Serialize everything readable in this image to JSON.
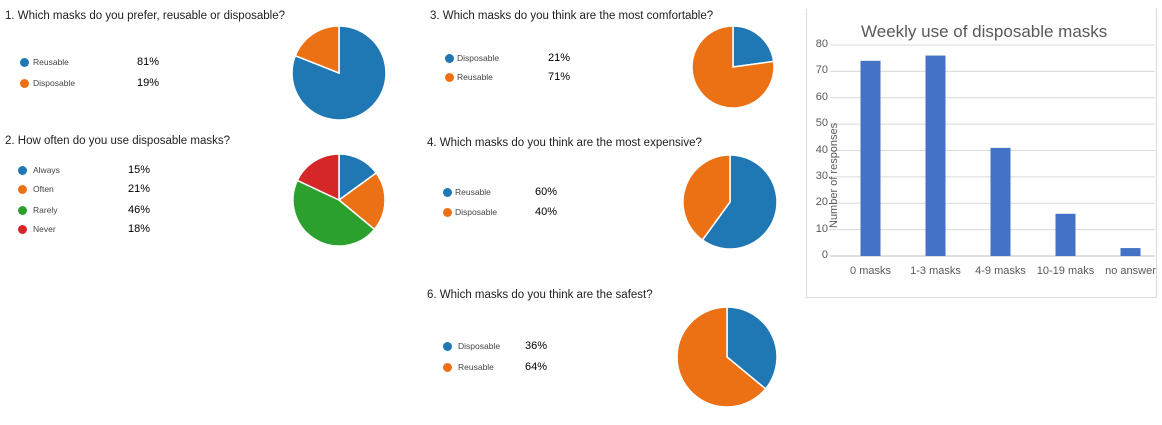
{
  "colors": {
    "blue": "#1f77b4",
    "orange": "#ec7014",
    "green": "#2ca02c",
    "red": "#d62728",
    "bar": "#4472c4"
  },
  "pies": [
    {
      "title": "1.  Which masks do you prefer, reusable or disposable?",
      "items": [
        {
          "label": "Reusable",
          "pct": "81%",
          "value": 81,
          "color": "blue"
        },
        {
          "label": "Disposable",
          "pct": "19%",
          "value": 19,
          "color": "orange"
        }
      ]
    },
    {
      "title": "2.  How often do you use disposable masks?",
      "items": [
        {
          "label": "Always",
          "pct": "15%",
          "value": 15,
          "color": "blue"
        },
        {
          "label": "Often",
          "pct": "21%",
          "value": 21,
          "color": "orange"
        },
        {
          "label": "Rarely",
          "pct": "46%",
          "value": 46,
          "color": "green"
        },
        {
          "label": "Never",
          "pct": "18%",
          "value": 18,
          "color": "red"
        }
      ]
    },
    {
      "title": "3.  Which masks do you think are the most comfortable?",
      "items": [
        {
          "label": "Disposable",
          "pct": "21%",
          "value": 21,
          "color": "blue"
        },
        {
          "label": "Reusable",
          "pct": "71%",
          "value": 71,
          "color": "orange"
        }
      ]
    },
    {
      "title": "4.  Which masks do you think are the most expensive?",
      "items": [
        {
          "label": "Reusable",
          "pct": "60%",
          "value": 60,
          "color": "blue"
        },
        {
          "label": "Disposable",
          "pct": "40%",
          "value": 40,
          "color": "orange"
        }
      ]
    },
    {
      "title": "6.  Which masks do you think are the safest?",
      "items": [
        {
          "label": "Disposable",
          "pct": "36%",
          "value": 36,
          "color": "blue"
        },
        {
          "label": "Reusable",
          "pct": "64%",
          "value": 64,
          "color": "orange"
        }
      ]
    }
  ],
  "chart_data": [
    {
      "type": "pie",
      "title": "1.  Which masks do you prefer, reusable or disposable?",
      "categories": [
        "Reusable",
        "Disposable"
      ],
      "values": [
        81,
        19
      ]
    },
    {
      "type": "pie",
      "title": "2.  How often do you use disposable masks?",
      "categories": [
        "Always",
        "Often",
        "Rarely",
        "Never"
      ],
      "values": [
        15,
        21,
        46,
        18
      ]
    },
    {
      "type": "pie",
      "title": "3.  Which masks do you think are the most comfortable?",
      "categories": [
        "Disposable",
        "Reusable"
      ],
      "values": [
        21,
        71
      ]
    },
    {
      "type": "pie",
      "title": "4.  Which masks do you think are the most expensive?",
      "categories": [
        "Reusable",
        "Disposable"
      ],
      "values": [
        60,
        40
      ]
    },
    {
      "type": "pie",
      "title": "6.  Which masks do you think are the safest?",
      "categories": [
        "Disposable",
        "Reusable"
      ],
      "values": [
        36,
        64
      ]
    },
    {
      "type": "bar",
      "title": "Weekly use of disposable masks",
      "categories": [
        "0 masks",
        "1-3 masks",
        "4-9 masks",
        "10-19 maks",
        "no answer"
      ],
      "values": [
        74,
        76,
        41,
        16,
        3
      ],
      "xlabel": "",
      "ylabel": "Number of responses",
      "ylim": [
        0,
        80
      ],
      "yticks": [
        "0",
        "10",
        "20",
        "30",
        "40",
        "50",
        "60",
        "70",
        "80"
      ],
      "grid": true
    }
  ]
}
